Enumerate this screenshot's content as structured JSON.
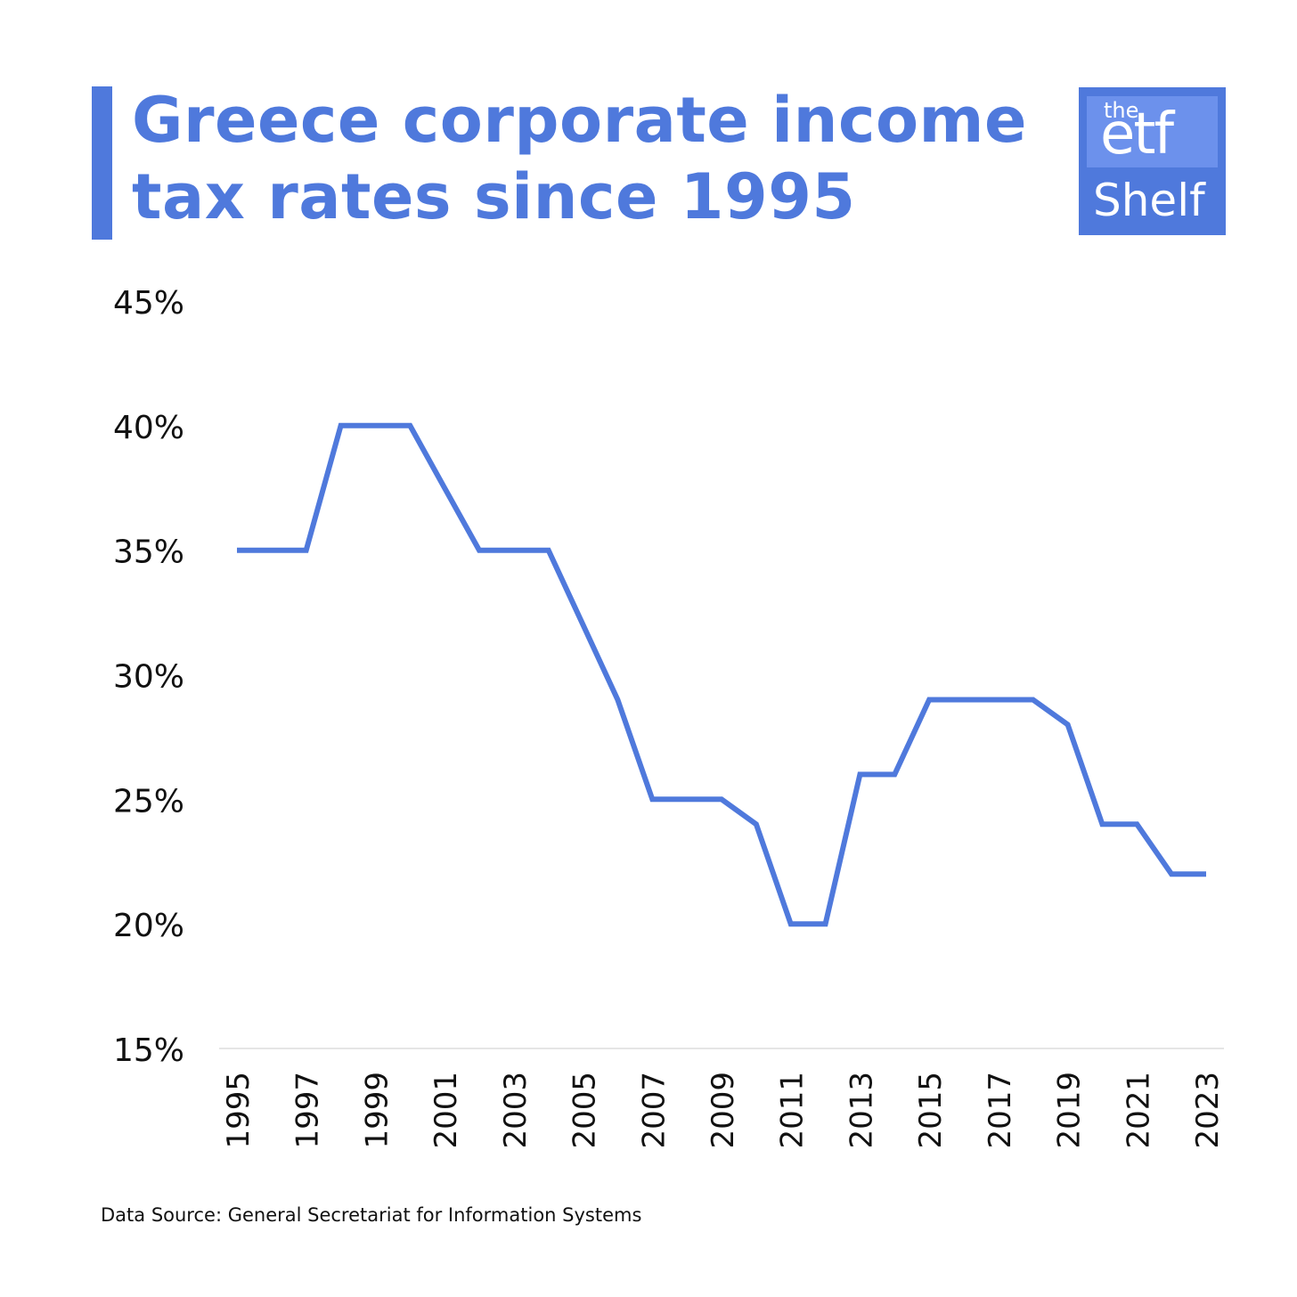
{
  "header": {
    "title_line1": "Greece corporate income",
    "title_line2": "tax rates since 1995"
  },
  "logo": {
    "the": "the",
    "etf": "etf",
    "shelf": "Shelf"
  },
  "colors": {
    "accent": "#4f79dc",
    "logo_inner": "#6c91ec",
    "text": "#111111",
    "axis": "#e5e5e5"
  },
  "footer": {
    "source": "Data Source: General Secretariat for Information Systems"
  },
  "chart_data": {
    "type": "line",
    "title": "Greece corporate income tax rates since 1995",
    "xlabel": "",
    "ylabel": "",
    "ylim": [
      15,
      45
    ],
    "yticks": [
      15,
      20,
      25,
      30,
      35,
      40,
      45
    ],
    "ytick_labels": [
      "15%",
      "20%",
      "25%",
      "30%",
      "35%",
      "40%",
      "45%"
    ],
    "xlim": [
      1995,
      2023
    ],
    "xtick_labels": [
      "1995",
      "1997",
      "1999",
      "2001",
      "2003",
      "2005",
      "2007",
      "2009",
      "2011",
      "2013",
      "2015",
      "2017",
      "2019",
      "2021",
      "2023"
    ],
    "grid": false,
    "legend": "none",
    "x": [
      1995,
      1996,
      1997,
      1998,
      1999,
      2000,
      2001,
      2002,
      2003,
      2004,
      2005,
      2006,
      2007,
      2008,
      2009,
      2010,
      2011,
      2012,
      2013,
      2014,
      2015,
      2016,
      2017,
      2018,
      2019,
      2020,
      2021,
      2022,
      2023
    ],
    "series": [
      {
        "values": [
          35,
          35,
          35,
          40,
          40,
          40,
          37.5,
          35,
          35,
          35,
          32,
          29,
          25,
          25,
          25,
          24,
          20,
          20,
          26,
          26,
          29,
          29,
          29,
          29,
          28,
          24,
          24,
          22,
          22
        ]
      }
    ]
  }
}
